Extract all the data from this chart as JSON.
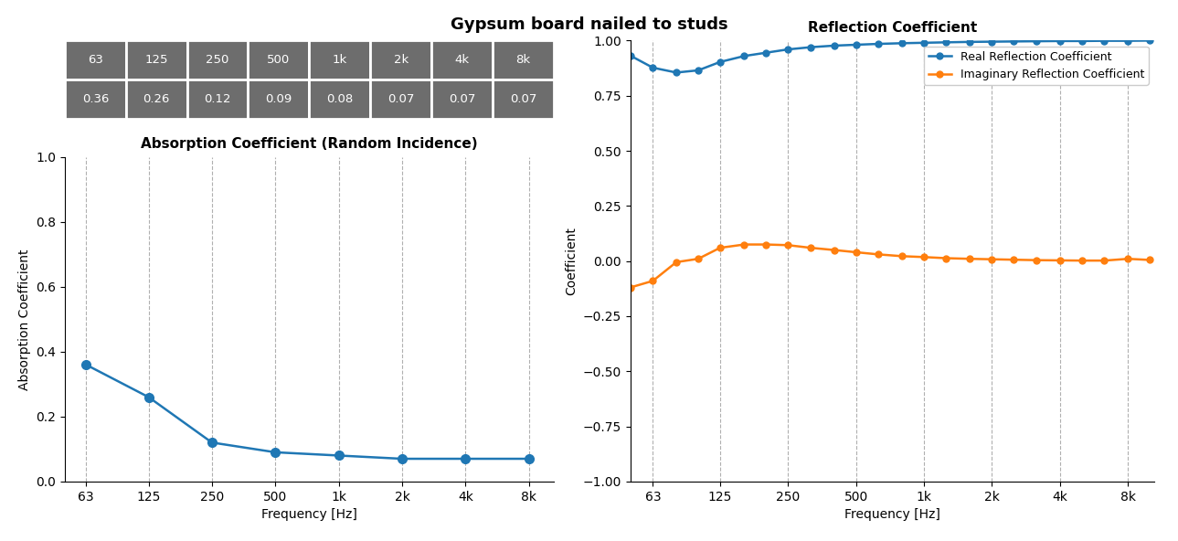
{
  "title": "Gypsum board nailed to studs",
  "table_freqs": [
    "63",
    "125",
    "250",
    "500",
    "1k",
    "2k",
    "4k",
    "8k"
  ],
  "table_values": [
    "0.36",
    "0.26",
    "0.12",
    "0.09",
    "0.08",
    "0.07",
    "0.07",
    "0.07"
  ],
  "absorption_freqs": [
    63,
    125,
    250,
    500,
    1000,
    2000,
    4000,
    8000
  ],
  "absorption_values": [
    0.36,
    0.26,
    0.12,
    0.09,
    0.08,
    0.07,
    0.07,
    0.07
  ],
  "absorption_title": "Absorption Coefficient (Random Incidence)",
  "absorption_ylabel": "Absorption Coefficient",
  "absorption_xlabel": "Frequency [Hz]",
  "absorption_ylim": [
    0.0,
    1.0
  ],
  "reflection_freqs": [
    50,
    63,
    80,
    100,
    125,
    160,
    200,
    250,
    315,
    400,
    500,
    630,
    800,
    1000,
    1250,
    1600,
    2000,
    2500,
    3150,
    4000,
    5000,
    6300,
    8000,
    10000
  ],
  "reflection_real": [
    0.932,
    0.877,
    0.855,
    0.865,
    0.903,
    0.93,
    0.945,
    0.96,
    0.97,
    0.977,
    0.981,
    0.985,
    0.988,
    0.99,
    0.992,
    0.994,
    0.995,
    0.996,
    0.997,
    0.998,
    0.998,
    0.999,
    0.999,
    1.0
  ],
  "reflection_imag": [
    -0.12,
    -0.09,
    -0.005,
    0.01,
    0.06,
    0.075,
    0.075,
    0.072,
    0.06,
    0.05,
    0.04,
    0.03,
    0.022,
    0.018,
    0.013,
    0.01,
    0.008,
    0.006,
    0.004,
    0.003,
    0.002,
    0.002,
    0.01,
    0.005
  ],
  "reflection_title": "Reflection Coefficient",
  "reflection_ylabel": "Coefficient",
  "reflection_xlabel": "Frequency [Hz]",
  "reflection_ylim": [
    -1.0,
    1.0
  ],
  "real_label": "Real Reflection Coefficient",
  "imag_label": "Imaginary Reflection Coefficient",
  "real_color": "#1f77b4",
  "imag_color": "#ff7f0e",
  "table_bg_color": "#6d6d6d",
  "table_text_color": "#ffffff",
  "grid_color": "#b0b0b0",
  "xtick_labels": [
    "63",
    "125",
    "250",
    "500",
    "1k",
    "2k",
    "4k",
    "8k"
  ],
  "xtick_vals": [
    63,
    125,
    250,
    500,
    1000,
    2000,
    4000,
    8000
  ]
}
